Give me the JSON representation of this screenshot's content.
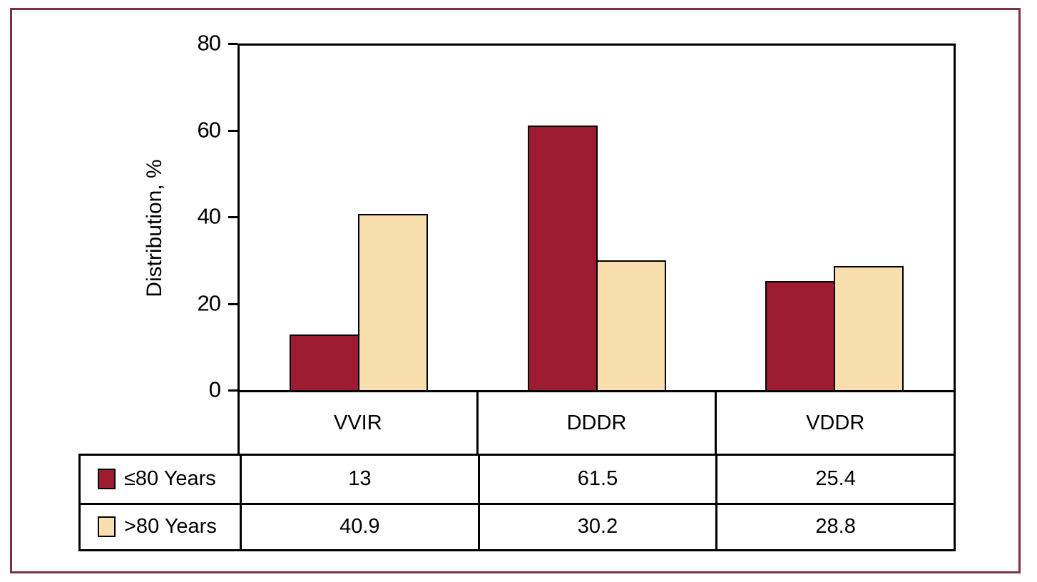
{
  "chart_data": {
    "type": "bar",
    "title": "",
    "xlabel": "",
    "ylabel": "Distribution, %",
    "ylim": [
      0,
      80
    ],
    "y_ticks": [
      0,
      20,
      40,
      60,
      80
    ],
    "grid": false,
    "legend_position": "table-left",
    "categories": [
      "VVIR",
      "DDDR",
      "VDDR"
    ],
    "series": [
      {
        "name": "≤80 Years",
        "color": "#9e1c32",
        "values": [
          13,
          61.5,
          25.4
        ]
      },
      {
        "name": ">80 Years",
        "color": "#f9deae",
        "values": [
          40.9,
          30.2,
          28.8
        ]
      }
    ]
  },
  "table": {
    "column_headers": [
      "VVIR",
      "DDDR",
      "VDDR"
    ],
    "rows": [
      {
        "label": "≤80 Years",
        "swatch_color": "#9e1c32",
        "values": [
          "13",
          "61.5",
          "25.4"
        ]
      },
      {
        "label": ">80 Years",
        "swatch_color": "#f9deae",
        "values": [
          "40.9",
          "30.2",
          "28.8"
        ]
      }
    ]
  },
  "colors": {
    "frame_border": "#7a3045",
    "axis": "#000000",
    "series1": "#9e1c32",
    "series2": "#f9deae"
  }
}
